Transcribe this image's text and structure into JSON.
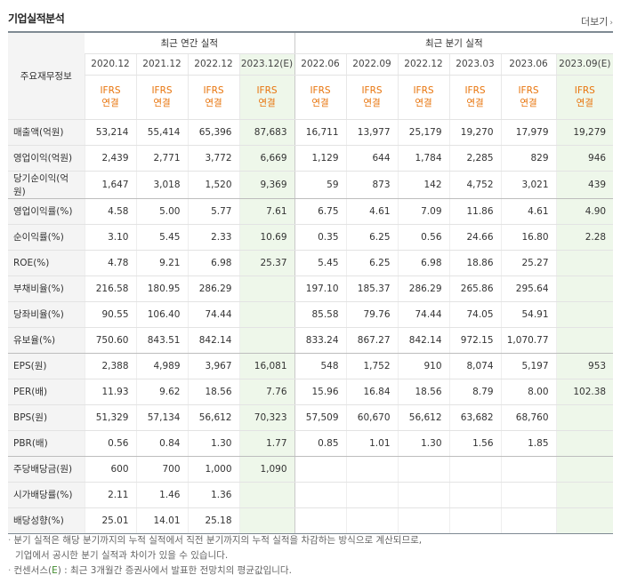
{
  "title": "기업실적분석",
  "more_label": "더보기",
  "header": {
    "corner_label": "주요재무정보",
    "annual_group": "최근 연간 실적",
    "quarter_group": "최근 분기 실적",
    "periods": [
      "2020.12",
      "2021.12",
      "2022.12",
      "2023.12(E)",
      "2022.06",
      "2022.09",
      "2022.12",
      "2023.03",
      "2023.06",
      "2023.09(E)"
    ],
    "acct_line1": "IFRS",
    "acct_line2": "연결"
  },
  "rows": [
    {
      "label": "매출액(억원)",
      "values": [
        "53,214",
        "55,414",
        "65,396",
        "87,683",
        "16,711",
        "13,977",
        "25,179",
        "19,270",
        "17,979",
        "19,279"
      ]
    },
    {
      "label": "영업이익(억원)",
      "values": [
        "2,439",
        "2,771",
        "3,772",
        "6,669",
        "1,129",
        "644",
        "1,784",
        "2,285",
        "829",
        "946"
      ]
    },
    {
      "label": "당기순이익(억원)",
      "values": [
        "1,647",
        "3,018",
        "1,520",
        "9,369",
        "59",
        "873",
        "142",
        "4,752",
        "3,021",
        "439"
      ]
    },
    {
      "label": "영업이익률(%)",
      "values": [
        "4.58",
        "5.00",
        "5.77",
        "7.61",
        "6.75",
        "4.61",
        "7.09",
        "11.86",
        "4.61",
        "4.90"
      ]
    },
    {
      "label": "순이익률(%)",
      "values": [
        "3.10",
        "5.45",
        "2.33",
        "10.69",
        "0.35",
        "6.25",
        "0.56",
        "24.66",
        "16.80",
        "2.28"
      ]
    },
    {
      "label": "ROE(%)",
      "values": [
        "4.78",
        "9.21",
        "6.98",
        "25.37",
        "5.45",
        "6.25",
        "6.98",
        "18.86",
        "25.27",
        ""
      ]
    },
    {
      "label": "부채비율(%)",
      "values": [
        "216.58",
        "180.95",
        "286.29",
        "",
        "197.10",
        "185.37",
        "286.29",
        "265.86",
        "295.64",
        ""
      ]
    },
    {
      "label": "당좌비율(%)",
      "values": [
        "90.55",
        "106.40",
        "74.44",
        "",
        "85.58",
        "79.76",
        "74.44",
        "74.05",
        "54.91",
        ""
      ]
    },
    {
      "label": "유보율(%)",
      "values": [
        "750.60",
        "843.51",
        "842.14",
        "",
        "833.24",
        "867.27",
        "842.14",
        "972.15",
        "1,070.77",
        ""
      ]
    },
    {
      "label": "EPS(원)",
      "values": [
        "2,388",
        "4,989",
        "3,967",
        "16,081",
        "548",
        "1,752",
        "910",
        "8,074",
        "5,197",
        "953"
      ]
    },
    {
      "label": "PER(배)",
      "values": [
        "11.93",
        "9.62",
        "18.56",
        "7.76",
        "15.96",
        "16.84",
        "18.56",
        "8.79",
        "8.00",
        "102.38"
      ]
    },
    {
      "label": "BPS(원)",
      "values": [
        "51,329",
        "57,134",
        "56,612",
        "70,323",
        "57,509",
        "60,670",
        "56,612",
        "63,682",
        "68,760",
        ""
      ]
    },
    {
      "label": "PBR(배)",
      "values": [
        "0.56",
        "0.84",
        "1.30",
        "1.77",
        "0.85",
        "1.01",
        "1.30",
        "1.56",
        "1.85",
        ""
      ]
    },
    {
      "label": "주당배당금(원)",
      "values": [
        "600",
        "700",
        "1,000",
        "1,090",
        "",
        "",
        "",
        "",
        "",
        ""
      ]
    },
    {
      "label": "시가배당률(%)",
      "values": [
        "2.11",
        "1.46",
        "1.36",
        "",
        "",
        "",
        "",
        "",
        "",
        ""
      ]
    },
    {
      "label": "배당성향(%)",
      "values": [
        "25.01",
        "14.01",
        "25.18",
        "",
        "",
        "",
        "",
        "",
        "",
        ""
      ]
    }
  ],
  "notes": {
    "line1": "분기 실적은 해당 분기까지의 누적 실적에서 직전 분기까지의 누적 실적을 차감하는 방식으로 계산되므로,",
    "line2": "기업에서 공시한 분기 실적과 차이가 있을 수 있습니다.",
    "line3_prefix": "컨센서스(",
    "line3_e": "E",
    "line3_suffix": ") : 최근 3개월간 증권사에서 발표한 전망치의 평균값입니다."
  },
  "colors": {
    "accent_orange": "#e8740c",
    "estimate_bg": "#eef7ea",
    "estimate_text": "#3f8a2b"
  }
}
